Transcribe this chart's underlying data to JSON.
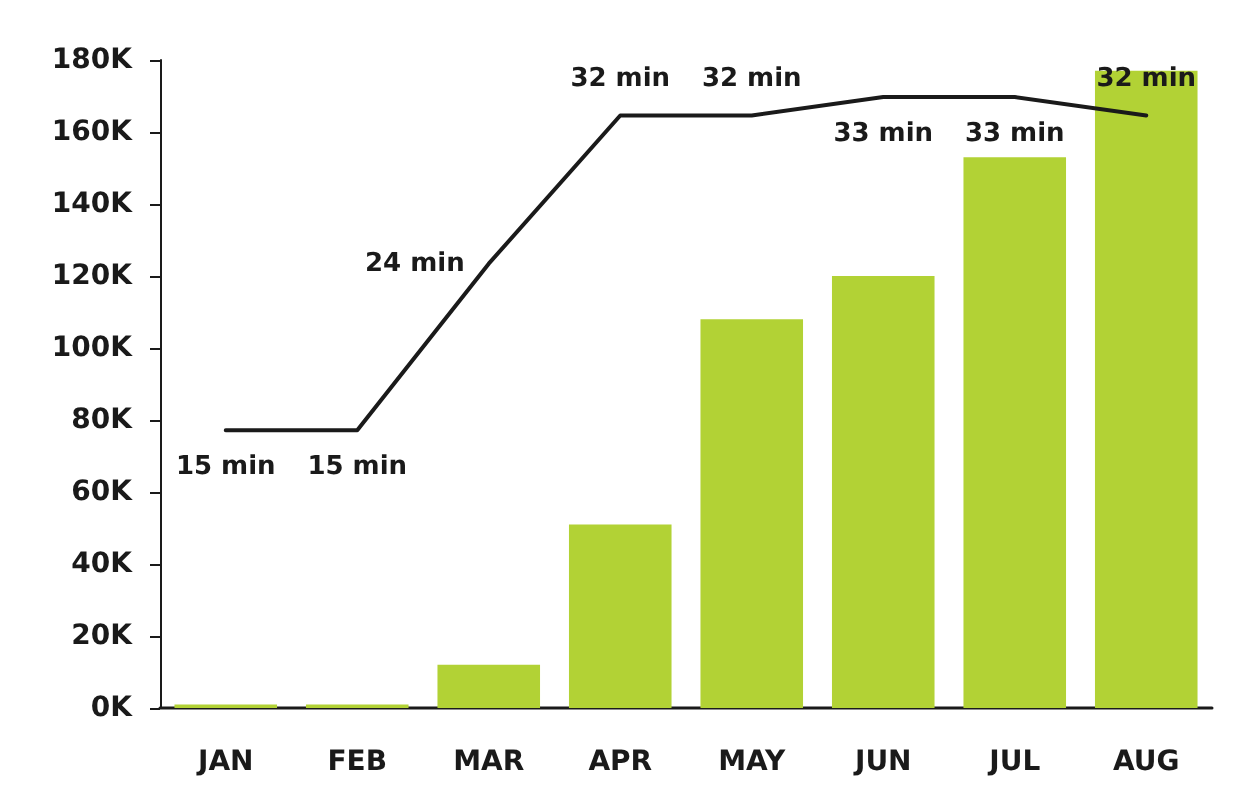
{
  "chart_data": {
    "type": "bar",
    "categories": [
      "JAN",
      "FEB",
      "MAR",
      "APR",
      "MAY",
      "JUN",
      "JUL",
      "AUG"
    ],
    "ylim": [
      0,
      180000
    ],
    "yticks": [
      {
        "value": 0,
        "label": "0K"
      },
      {
        "value": 20000,
        "label": "20K"
      },
      {
        "value": 40000,
        "label": "40K"
      },
      {
        "value": 60000,
        "label": "60K"
      },
      {
        "value": 80000,
        "label": "80K"
      },
      {
        "value": 100000,
        "label": "100K"
      },
      {
        "value": 120000,
        "label": "120K"
      },
      {
        "value": 140000,
        "label": "140K"
      },
      {
        "value": 160000,
        "label": "160K"
      },
      {
        "value": 180000,
        "label": "180K"
      }
    ],
    "tick_labels": "xy",
    "grid": false,
    "series": [
      {
        "color": "#b2d235",
        "values": [
          1000,
          1000,
          12000,
          51000,
          108000,
          120000,
          153000,
          177000
        ]
      },
      {
        "type": "line",
        "axis": "y2",
        "color": "#1a1a1a",
        "marker": "none",
        "line_style": "solid",
        "values": [
          15,
          15,
          24,
          32,
          32,
          33,
          33,
          32
        ],
        "value_labels": [
          "15 min",
          "15 min",
          "24 min",
          "32 min",
          "32 min",
          "33 min",
          "33 min",
          "32 min"
        ]
      }
    ]
  }
}
